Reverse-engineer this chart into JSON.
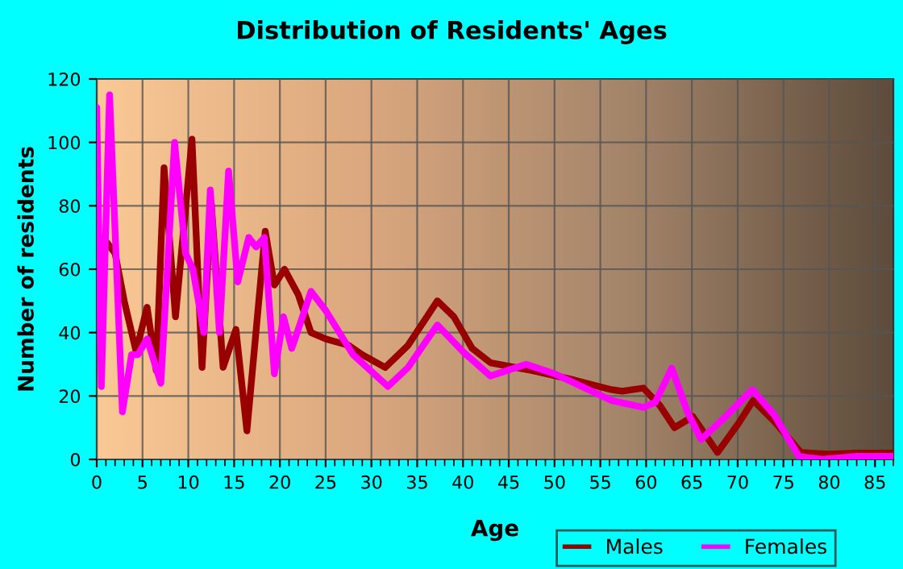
{
  "chart_data": {
    "type": "line",
    "title": "Distribution of Residents' Ages",
    "xlabel": "Age",
    "ylabel": "Number of residents",
    "xlim": [
      0,
      87
    ],
    "xticks": [
      0,
      5,
      10,
      15,
      20,
      25,
      30,
      35,
      40,
      45,
      50,
      55,
      60,
      65,
      70,
      75,
      80,
      85
    ],
    "ylim": [
      0,
      120
    ],
    "yticks": [
      0,
      20,
      40,
      60,
      80,
      100,
      120
    ],
    "grid": true,
    "legend": "bottom right",
    "marker": "none",
    "line_style": "solid",
    "series": [
      {
        "name": "Males",
        "color": "#990000",
        "x": [
          0,
          0.4,
          0.7,
          2,
          3,
          4.3,
          5.5,
          6.5,
          7.35,
          8.6,
          10.4,
          11.5,
          12.5,
          13.8,
          15.2,
          16.4,
          18.4,
          19.4,
          20.5,
          22,
          23.4,
          25,
          27.5,
          29,
          31.5,
          34,
          37.2,
          39,
          41,
          43,
          47.6,
          52.2,
          56.2,
          57.4,
          59.7,
          61.5,
          63.1,
          65.1,
          67.8,
          70,
          71.7,
          74,
          76.9,
          79.8,
          83,
          87
        ],
        "values": [
          70,
          57,
          70,
          65,
          50,
          34,
          48,
          28,
          92,
          45,
          101,
          29,
          81,
          29,
          41,
          9,
          72,
          55,
          60,
          52,
          40,
          38,
          36,
          33,
          29,
          36,
          50,
          45,
          35,
          30.5,
          28,
          25,
          22,
          21.5,
          22.5,
          17,
          10,
          13.5,
          2.2,
          11,
          18.6,
          12,
          2.2,
          1.7,
          2,
          2
        ]
      },
      {
        "name": "Females",
        "color": "#ff00ff",
        "x": [
          0,
          0.5,
          1.4,
          2.8,
          3.8,
          4.5,
          5.5,
          7,
          8.5,
          9.7,
          10.5,
          11.7,
          12.4,
          13.4,
          14.4,
          15.4,
          16.6,
          17.4,
          18.3,
          19.4,
          20.4,
          21.3,
          23.4,
          25,
          28,
          31.8,
          34,
          37.2,
          40,
          43,
          46.9,
          50,
          56.2,
          59.7,
          61,
          62.8,
          64.5,
          66,
          68.4,
          71.6,
          74,
          76.7,
          79.3,
          83,
          87
        ],
        "values": [
          111,
          23,
          115,
          15,
          33,
          33,
          38,
          24,
          100,
          65,
          60,
          40,
          85,
          40,
          91,
          56,
          70,
          67,
          70,
          27,
          45,
          35,
          53,
          47,
          33,
          23,
          29,
          42.4,
          34,
          26.3,
          30,
          27,
          18.6,
          16.4,
          18,
          28.8,
          15,
          6.3,
          12.7,
          22,
          14,
          0.9,
          0,
          1,
          1
        ]
      }
    ]
  }
}
